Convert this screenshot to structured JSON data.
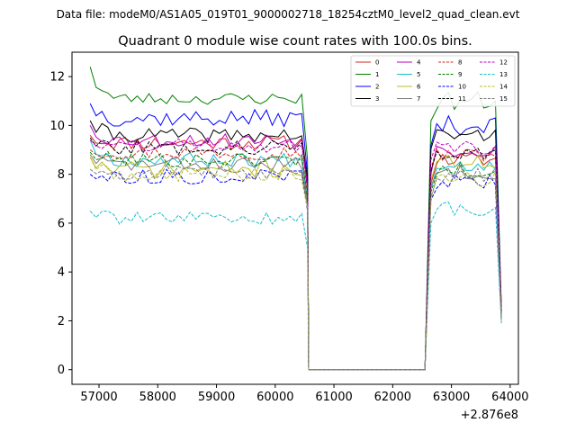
{
  "suptitle": "Data file: modeM0/AS1A05_019T01_9000002718_18254cztM0_level2_quad_clean.evt",
  "chart_data": {
    "type": "line",
    "title": "Quadrant 0 module wise count rates with 100.0s bins.",
    "xlabel": "",
    "ylabel": "",
    "x_offset_label": "+2.876e8",
    "xlim": [
      56540,
      64140
    ],
    "ylim": [
      -0.6,
      13.0
    ],
    "xticks": [
      57000,
      58000,
      59000,
      60000,
      61000,
      62000,
      63000,
      64000
    ],
    "xtick_labels": [
      "57000",
      "58000",
      "59000",
      "60000",
      "61000",
      "62000",
      "63000",
      "64000"
    ],
    "yticks": [
      0,
      2,
      4,
      6,
      8,
      10,
      12
    ],
    "ytick_labels": [
      "0",
      "2",
      "4",
      "6",
      "8",
      "10",
      "12"
    ],
    "legend_position": "top-right",
    "seg1": {
      "start": 56850,
      "step": 100,
      "count": 38,
      "end": 60550
    },
    "gap": {
      "start": 60550,
      "end": 62550
    },
    "seg2": {
      "start": 62550,
      "step": 100,
      "count": 13,
      "end": 63750
    },
    "series": [
      {
        "name": "0",
        "color": "#d62728",
        "dash": "solid",
        "base1": 9.3,
        "amp1": 0.3,
        "base2": 8.6,
        "amp2": 0.3,
        "start": 9.6,
        "end1": 7.6,
        "end2": 2.6,
        "seed": 11
      },
      {
        "name": "1",
        "color": "#008000",
        "dash": "solid",
        "base1": 11.1,
        "amp1": 0.25,
        "base2": 11.0,
        "amp2": 0.4,
        "start": 12.4,
        "end1": 8.6,
        "end2": 2.5,
        "seed": 23
      },
      {
        "name": "2",
        "color": "#0000ff",
        "dash": "solid",
        "base1": 10.3,
        "amp1": 0.35,
        "base2": 10.0,
        "amp2": 0.4,
        "start": 10.9,
        "end1": 8.0,
        "end2": 2.4,
        "seed": 37
      },
      {
        "name": "3",
        "color": "#000000",
        "dash": "solid",
        "base1": 9.6,
        "amp1": 0.3,
        "base2": 9.6,
        "amp2": 0.3,
        "start": 10.2,
        "end1": 7.8,
        "end2": 2.3,
        "seed": 41
      },
      {
        "name": "4",
        "color": "#bf00bf",
        "dash": "solid",
        "base1": 9.4,
        "amp1": 0.3,
        "base2": 9.0,
        "amp2": 0.3,
        "start": 10.0,
        "end1": 7.5,
        "end2": 2.4,
        "seed": 53
      },
      {
        "name": "5",
        "color": "#17becf",
        "dash": "solid",
        "base1": 8.6,
        "amp1": 0.3,
        "base2": 8.4,
        "amp2": 0.3,
        "start": 9.4,
        "end1": 7.0,
        "end2": 2.2,
        "seed": 67
      },
      {
        "name": "6",
        "color": "#bcbd22",
        "dash": "solid",
        "base1": 8.2,
        "amp1": 0.35,
        "base2": 8.5,
        "amp2": 0.3,
        "start": 8.7,
        "end1": 6.8,
        "end2": 2.1,
        "seed": 71
      },
      {
        "name": "7",
        "color": "#7f7f7f",
        "dash": "solid",
        "base1": 8.4,
        "amp1": 0.3,
        "base2": 8.1,
        "amp2": 0.3,
        "start": 8.8,
        "end1": 6.9,
        "end2": 2.0,
        "seed": 83
      },
      {
        "name": "8",
        "color": "#d62728",
        "dash": "dashed",
        "base1": 8.9,
        "amp1": 0.3,
        "base2": 8.8,
        "amp2": 0.3,
        "start": 9.0,
        "end1": 7.3,
        "end2": 2.3,
        "seed": 97
      },
      {
        "name": "9",
        "color": "#008000",
        "dash": "dashed",
        "base1": 8.6,
        "amp1": 0.3,
        "base2": 8.2,
        "amp2": 0.3,
        "start": 8.9,
        "end1": 7.0,
        "end2": 2.2,
        "seed": 101
      },
      {
        "name": "10",
        "color": "#0000ff",
        "dash": "dashed",
        "base1": 7.9,
        "amp1": 0.3,
        "base2": 7.7,
        "amp2": 0.3,
        "start": 8.0,
        "end1": 6.5,
        "end2": 2.0,
        "seed": 113
      },
      {
        "name": "11",
        "color": "#000000",
        "dash": "dashed",
        "base1": 9.1,
        "amp1": 0.3,
        "base2": 8.9,
        "amp2": 0.3,
        "start": 9.5,
        "end1": 7.4,
        "end2": 2.3,
        "seed": 127
      },
      {
        "name": "12",
        "color": "#bf00bf",
        "dash": "dashed",
        "base1": 9.2,
        "amp1": 0.3,
        "base2": 9.1,
        "amp2": 0.3,
        "start": 9.4,
        "end1": 7.5,
        "end2": 2.4,
        "seed": 131
      },
      {
        "name": "13",
        "color": "#17becf",
        "dash": "dashed",
        "base1": 6.2,
        "amp1": 0.25,
        "base2": 6.6,
        "amp2": 0.3,
        "start": 6.5,
        "end1": 5.0,
        "end2": 1.9,
        "seed": 139
      },
      {
        "name": "14",
        "color": "#bcbd22",
        "dash": "dashed",
        "base1": 8.0,
        "amp1": 0.3,
        "base2": 7.8,
        "amp2": 0.3,
        "start": 8.7,
        "end1": 6.6,
        "end2": 2.0,
        "seed": 149
      },
      {
        "name": "15",
        "color": "#7f7f7f",
        "dash": "dashed",
        "base1": 8.1,
        "amp1": 0.3,
        "base2": 8.0,
        "amp2": 0.3,
        "start": 8.2,
        "end1": 6.7,
        "end2": 2.1,
        "seed": 157
      }
    ]
  }
}
